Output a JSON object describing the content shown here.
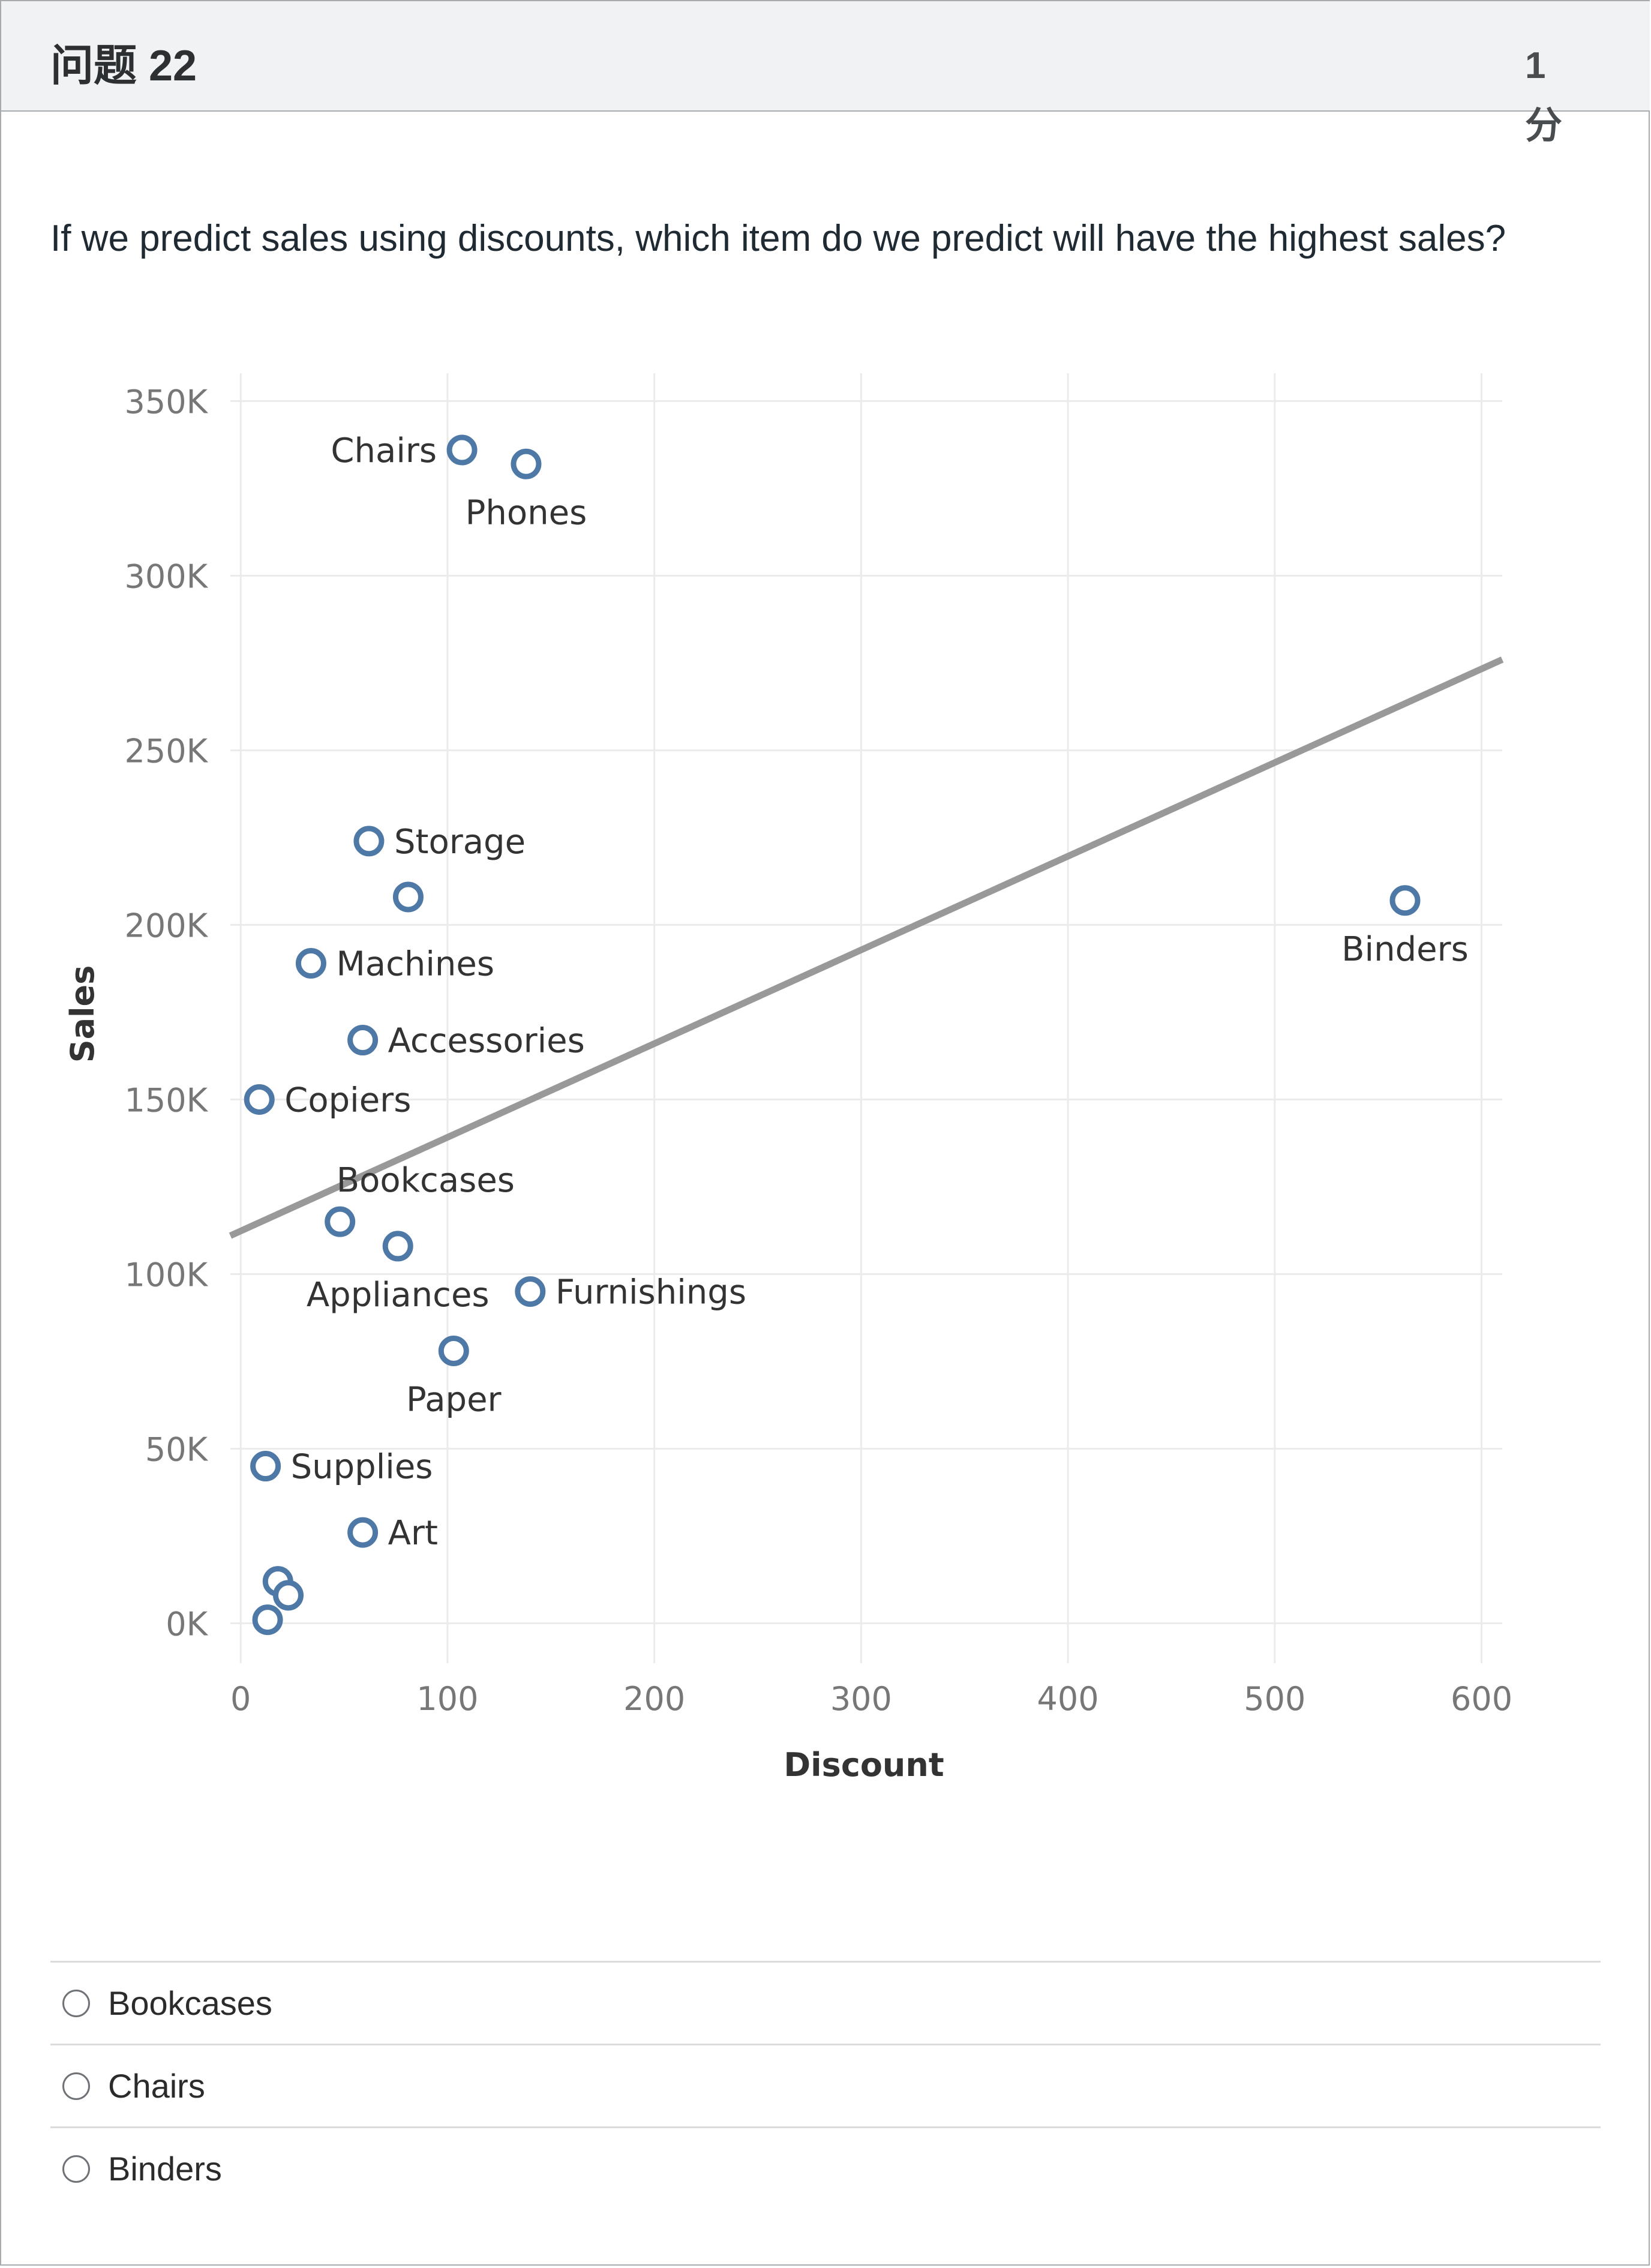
{
  "question": {
    "title": "问题 22",
    "points_value": "1",
    "points_unit": "分",
    "text": "If we predict sales using discounts, which item do we predict will have the highest sales?"
  },
  "chart_data": {
    "type": "scatter",
    "title": "",
    "xlabel": "Discount",
    "ylabel": "Sales",
    "xlim": [
      -5,
      610
    ],
    "ylim": [
      -8000,
      358000
    ],
    "x_ticks": [
      0,
      100,
      200,
      300,
      400,
      500,
      600
    ],
    "x_tick_labels": [
      "0",
      "100",
      "200",
      "300",
      "400",
      "500",
      "600"
    ],
    "y_ticks": [
      0,
      50000,
      100000,
      150000,
      200000,
      250000,
      300000,
      350000
    ],
    "y_tick_labels": [
      "0K",
      "50K",
      "100K",
      "150K",
      "200K",
      "250K",
      "300K",
      "350K"
    ],
    "grid": true,
    "trend_line": {
      "x": [
        -5,
        610
      ],
      "y": [
        111000,
        276000
      ]
    },
    "marker_color": "#4e79a7",
    "trend_color": "#999999",
    "points": [
      {
        "name": "Chairs",
        "label": "Chairs",
        "x": 107,
        "y": 336000,
        "label_pos": "left"
      },
      {
        "name": "Phones",
        "label": "Phones",
        "x": 138,
        "y": 332000,
        "label_pos": "below"
      },
      {
        "name": "Storage",
        "label": "Storage",
        "x": 62,
        "y": 224000,
        "label_pos": "right"
      },
      {
        "name": "unlabeled-1",
        "label": "",
        "x": 81,
        "y": 208000,
        "label_pos": "none"
      },
      {
        "name": "Machines",
        "label": "Machines",
        "x": 34,
        "y": 189000,
        "label_pos": "right"
      },
      {
        "name": "Accessories",
        "label": "Accessories",
        "x": 59,
        "y": 167000,
        "label_pos": "right"
      },
      {
        "name": "Copiers",
        "label": "Copiers",
        "x": 9,
        "y": 150000,
        "label_pos": "right"
      },
      {
        "name": "Bookcases",
        "label": "Bookcases",
        "x": 48,
        "y": 115000,
        "label_pos": "above"
      },
      {
        "name": "Appliances",
        "label": "Appliances",
        "x": 76,
        "y": 108000,
        "label_pos": "below"
      },
      {
        "name": "Furnishings",
        "label": "Furnishings",
        "x": 140,
        "y": 95000,
        "label_pos": "right"
      },
      {
        "name": "Paper",
        "label": "Paper",
        "x": 103,
        "y": 78000,
        "label_pos": "below"
      },
      {
        "name": "Supplies",
        "label": "Supplies",
        "x": 12,
        "y": 45000,
        "label_pos": "right"
      },
      {
        "name": "Art",
        "label": "Art",
        "x": 59,
        "y": 26000,
        "label_pos": "right"
      },
      {
        "name": "unlabeled-2",
        "label": "",
        "x": 18,
        "y": 12000,
        "label_pos": "none"
      },
      {
        "name": "unlabeled-3",
        "label": "",
        "x": 23,
        "y": 8000,
        "label_pos": "none"
      },
      {
        "name": "unlabeled-4",
        "label": "",
        "x": 13,
        "y": 1000,
        "label_pos": "none"
      },
      {
        "name": "Binders",
        "label": "Binders",
        "x": 563,
        "y": 207000,
        "label_pos": "below"
      }
    ]
  },
  "options": [
    {
      "label": "Bookcases"
    },
    {
      "label": "Chairs"
    },
    {
      "label": "Binders"
    }
  ]
}
